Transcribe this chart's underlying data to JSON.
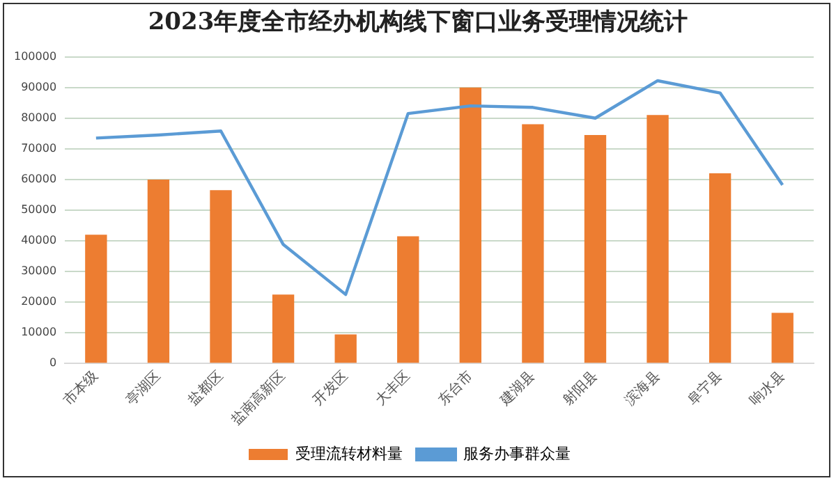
{
  "chart_data": {
    "type": "bar",
    "title": "2023年度全市经办机构线下窗口业务受理情况统计",
    "categories": [
      "市本级",
      "亭湖区",
      "盐都区",
      "盐南高新区",
      "开发区",
      "大丰区",
      "东台市",
      "建湖县",
      "射阳县",
      "滨海县",
      "阜宁县",
      "响水县"
    ],
    "series": [
      {
        "name": "受理流转材料量",
        "color": "#ed7d31",
        "values": [
          42000,
          60000,
          56500,
          22500,
          9500,
          41500,
          90000,
          78000,
          74500,
          81000,
          62000,
          16500
        ]
      },
      {
        "name": "服务办事群众量",
        "type": "line",
        "color": "#5b9bd5",
        "values": [
          73500,
          74500,
          75800,
          38800,
          22500,
          81500,
          84000,
          83500,
          80000,
          92200,
          88200,
          58200
        ]
      }
    ],
    "ylim": [
      0,
      100000
    ],
    "yticks": [
      0,
      10000,
      20000,
      30000,
      40000,
      50000,
      60000,
      70000,
      80000,
      90000,
      100000
    ],
    "grid": "y",
    "legend": "bottom",
    "marker": "none"
  }
}
